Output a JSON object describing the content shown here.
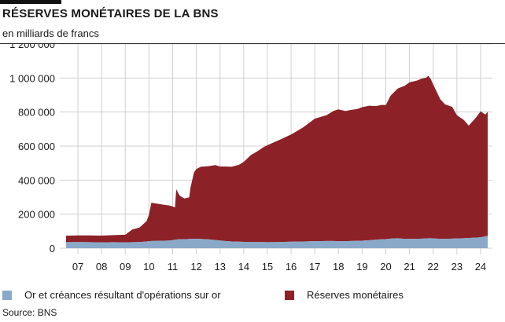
{
  "header": {
    "title": "RÉSERVES MONÉTAIRES DE LA BNS",
    "subtitle": "en milliards de francs"
  },
  "legend": [
    {
      "label": "Or et créances résultant d'opérations sur or",
      "color": "#8aa9c9"
    },
    {
      "label": "Réserves monétaires",
      "color": "#8c2127"
    }
  ],
  "source": "Source: BNS",
  "chart_data": {
    "type": "area",
    "stacked": true,
    "grid": true,
    "xlim": [
      2006.5,
      2024.5
    ],
    "ylim": [
      0,
      1200000
    ],
    "yticks": [
      0,
      200000,
      400000,
      600000,
      800000,
      1000000,
      1200000
    ],
    "ytick_labels": [
      "0",
      "200 000",
      "400 000",
      "600 000",
      "800 000",
      "1 000 000",
      "1 200 000"
    ],
    "xtick_labels": [
      "07",
      "08",
      "09",
      "10",
      "11",
      "12",
      "13",
      "14",
      "15",
      "16",
      "17",
      "18",
      "19",
      "20",
      "21",
      "22",
      "23",
      "24"
    ],
    "x": [
      2006.5,
      2007.0,
      2007.5,
      2008.0,
      2008.5,
      2009.0,
      2009.3,
      2009.6,
      2009.9,
      2010.0,
      2010.1,
      2010.5,
      2010.9,
      2011.1,
      2011.15,
      2011.3,
      2011.5,
      2011.7,
      2011.75,
      2011.9,
      2012.0,
      2012.2,
      2012.5,
      2012.8,
      2013.0,
      2013.2,
      2013.5,
      2013.8,
      2014.0,
      2014.3,
      2014.6,
      2014.8,
      2015.0,
      2015.5,
      2016.0,
      2016.5,
      2017.0,
      2017.5,
      2017.8,
      2018.0,
      2018.3,
      2018.5,
      2018.8,
      2019.0,
      2019.3,
      2019.6,
      2019.8,
      2020.0,
      2020.2,
      2020.5,
      2020.8,
      2021.0,
      2021.3,
      2021.5,
      2021.7,
      2021.8,
      2021.9,
      2022.0,
      2022.3,
      2022.5,
      2022.8,
      2023.0,
      2023.3,
      2023.5,
      2023.8,
      2024.0,
      2024.2,
      2024.3
    ],
    "series": [
      {
        "name": "Or et créances résultant d'opérations sur or",
        "color": "#8aa9c9",
        "values": [
          35000,
          36000,
          35000,
          34000,
          35000,
          34000,
          35000,
          36000,
          39000,
          41000,
          42000,
          43000,
          45000,
          50000,
          51000,
          53000,
          52000,
          54000,
          54000,
          55000,
          55000,
          54000,
          52000,
          48000,
          45000,
          42000,
          39000,
          38000,
          37000,
          37000,
          36000,
          36000,
          35000,
          36000,
          38000,
          39000,
          41000,
          42000,
          42000,
          41000,
          41000,
          42000,
          43000,
          44000,
          47000,
          50000,
          52000,
          53000,
          56000,
          58000,
          55000,
          55000,
          54000,
          56000,
          57000,
          58000,
          58000,
          57000,
          55000,
          55000,
          56000,
          57000,
          58000,
          60000,
          62000,
          64000,
          70000,
          72000
        ]
      },
      {
        "name": "Réserves monétaires",
        "color": "#8c2127",
        "values": [
          38000,
          39000,
          40000,
          40000,
          42000,
          45000,
          75000,
          85000,
          120000,
          155000,
          225000,
          215000,
          205000,
          190000,
          295000,
          255000,
          240000,
          245000,
          300000,
          390000,
          410000,
          425000,
          430000,
          440000,
          435000,
          438000,
          440000,
          452000,
          470000,
          510000,
          535000,
          555000,
          570000,
          600000,
          630000,
          670000,
          720000,
          740000,
          765000,
          775000,
          765000,
          770000,
          775000,
          785000,
          790000,
          785000,
          790000,
          788000,
          840000,
          880000,
          900000,
          920000,
          930000,
          940000,
          945000,
          955000,
          935000,
          905000,
          820000,
          790000,
          775000,
          725000,
          695000,
          660000,
          705000,
          740000,
          715000,
          730000
        ]
      }
    ]
  }
}
